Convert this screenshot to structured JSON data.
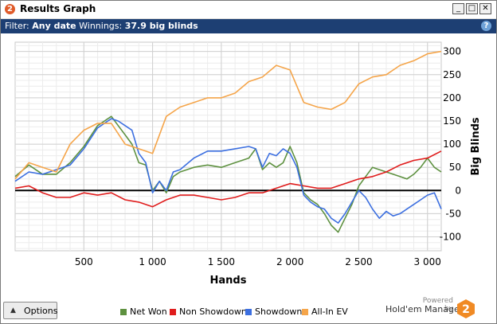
{
  "window": {
    "title": "Results Graph",
    "app_icon_text": "2",
    "minimize": "_",
    "maximize": "□",
    "close": "✕"
  },
  "filter": {
    "label": "Filter:",
    "date": "Any date",
    "winnings_label": "Winnings:",
    "winnings_value": "37.9 big blinds",
    "help": "?"
  },
  "options_button": {
    "label": "Options"
  },
  "legend": [
    {
      "label": "Net Won",
      "color": "#5e9140"
    },
    {
      "label": "Non Showdown",
      "color": "#e01c1c"
    },
    {
      "label": "Showdown",
      "color": "#3c6fe0"
    },
    {
      "label": "All-In EV",
      "color": "#f5a54a"
    }
  ],
  "branding": {
    "powered": "Powered by",
    "name": "Hold'em Manager",
    "logo_text": "2"
  },
  "chart_data": {
    "type": "line",
    "xlabel": "Hands",
    "ylabel": "Big Blinds",
    "xlim": [
      0,
      3100
    ],
    "ylim": [
      -130,
      320
    ],
    "xticks": [
      500,
      1000,
      1500,
      2000,
      2500,
      3000
    ],
    "xtick_labels": [
      "500",
      "1 000",
      "1 500",
      "2 000",
      "2 500",
      "3 000"
    ],
    "yticks": [
      -100,
      -50,
      0,
      50,
      100,
      150,
      200,
      250,
      300
    ],
    "ytick_labels": [
      "-100",
      "-50",
      "0",
      "50",
      "100",
      "150",
      "200",
      "250",
      "300"
    ],
    "grid": true,
    "legend_position": "bottom",
    "series": [
      {
        "name": "Net Won",
        "color": "#5e9140",
        "x": [
          0,
          100,
          200,
          300,
          400,
          500,
          600,
          700,
          750,
          800,
          850,
          900,
          950,
          1000,
          1050,
          1100,
          1150,
          1200,
          1300,
          1400,
          1500,
          1600,
          1700,
          1750,
          1800,
          1850,
          1900,
          1950,
          2000,
          2050,
          2100,
          2150,
          2200,
          2250,
          2300,
          2350,
          2400,
          2450,
          2500,
          2550,
          2600,
          2650,
          2700,
          2750,
          2800,
          2850,
          2900,
          2950,
          3000,
          3050,
          3100
        ],
        "values": [
          30,
          55,
          35,
          35,
          60,
          95,
          140,
          160,
          140,
          120,
          100,
          60,
          55,
          0,
          20,
          -5,
          30,
          40,
          50,
          55,
          50,
          60,
          70,
          90,
          45,
          60,
          50,
          60,
          95,
          60,
          -5,
          -20,
          -30,
          -50,
          -75,
          -90,
          -60,
          -30,
          10,
          30,
          50,
          45,
          40,
          35,
          30,
          25,
          35,
          50,
          70,
          50,
          40
        ]
      },
      {
        "name": "Non Showdown",
        "color": "#e01c1c",
        "x": [
          0,
          100,
          200,
          300,
          400,
          500,
          600,
          700,
          800,
          900,
          1000,
          1100,
          1200,
          1300,
          1400,
          1500,
          1600,
          1700,
          1800,
          1900,
          2000,
          2100,
          2200,
          2300,
          2400,
          2500,
          2600,
          2700,
          2800,
          2900,
          3000,
          3100
        ],
        "values": [
          5,
          10,
          -5,
          -15,
          -15,
          -5,
          -10,
          -5,
          -20,
          -25,
          -35,
          -20,
          -10,
          -10,
          -15,
          -20,
          -15,
          -5,
          -5,
          5,
          15,
          10,
          5,
          5,
          15,
          25,
          30,
          40,
          55,
          65,
          70,
          85
        ]
      },
      {
        "name": "Showdown",
        "color": "#3c6fe0",
        "x": [
          0,
          100,
          200,
          300,
          400,
          500,
          600,
          700,
          750,
          800,
          850,
          900,
          950,
          1000,
          1050,
          1100,
          1150,
          1200,
          1300,
          1400,
          1500,
          1600,
          1700,
          1750,
          1800,
          1850,
          1900,
          1950,
          2000,
          2050,
          2100,
          2150,
          2200,
          2250,
          2300,
          2350,
          2400,
          2450,
          2500,
          2550,
          2600,
          2650,
          2700,
          2750,
          2800,
          2850,
          2900,
          2950,
          3000,
          3050,
          3100
        ],
        "values": [
          20,
          40,
          35,
          45,
          55,
          90,
          135,
          155,
          150,
          140,
          130,
          80,
          60,
          -5,
          20,
          0,
          40,
          45,
          70,
          85,
          85,
          90,
          95,
          90,
          50,
          80,
          75,
          90,
          80,
          50,
          -10,
          -25,
          -35,
          -40,
          -60,
          -70,
          -50,
          -25,
          0,
          -15,
          -40,
          -60,
          -45,
          -55,
          -50,
          -40,
          -30,
          -20,
          -10,
          -5,
          -40
        ]
      },
      {
        "name": "All-In EV",
        "color": "#f5a54a",
        "x": [
          0,
          100,
          200,
          300,
          400,
          500,
          600,
          700,
          800,
          900,
          1000,
          1100,
          1200,
          1300,
          1400,
          1500,
          1600,
          1700,
          1800,
          1900,
          2000,
          2100,
          2200,
          2300,
          2400,
          2500,
          2600,
          2700,
          2800,
          2900,
          3000,
          3100
        ],
        "values": [
          25,
          60,
          50,
          40,
          100,
          130,
          145,
          145,
          100,
          90,
          80,
          160,
          180,
          190,
          200,
          200,
          210,
          235,
          245,
          270,
          260,
          190,
          180,
          175,
          190,
          230,
          245,
          250,
          270,
          280,
          295,
          300
        ]
      }
    ]
  }
}
